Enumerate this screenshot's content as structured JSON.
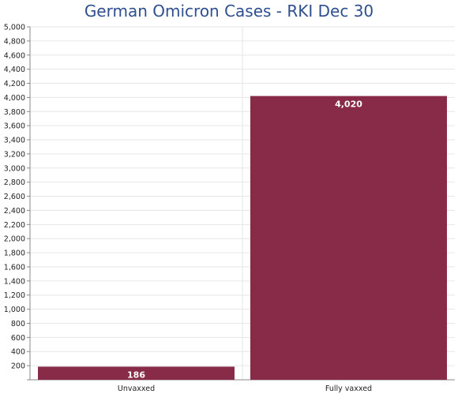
{
  "chart_data": {
    "type": "bar",
    "title": "German Omicron Cases - RKI Dec 30",
    "categories": [
      "Unvaxxed",
      "Fully vaxxed"
    ],
    "values": [
      186,
      4020
    ],
    "value_labels": [
      "186",
      "4,020"
    ],
    "ylim": [
      0,
      5000
    ],
    "ytick_step": 200,
    "xlabel": "",
    "ylabel": "",
    "grid": true,
    "legend": "none",
    "bar_color": "#872b48",
    "title_color": "#2f4f8f"
  }
}
